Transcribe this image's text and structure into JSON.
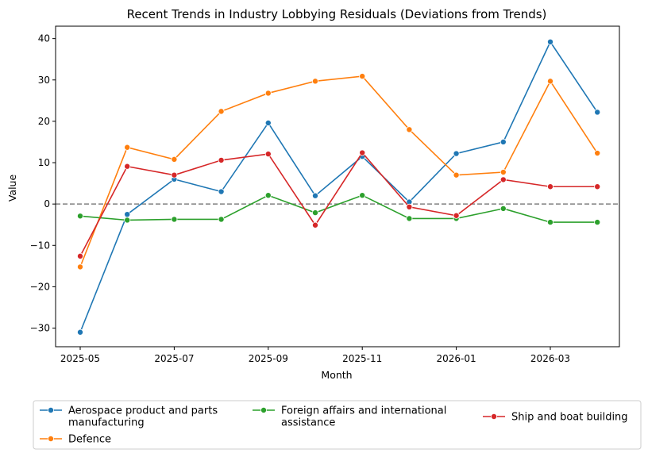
{
  "chart_data": {
    "type": "line",
    "title": "Recent Trends in Industry Lobbying Residuals (Deviations from Trends)",
    "xlabel": "Month",
    "ylabel": "Value",
    "x": [
      "2025-05",
      "2025-06",
      "2025-07",
      "2025-08",
      "2025-09",
      "2025-10",
      "2025-11",
      "2025-12",
      "2026-01",
      "2026-02",
      "2026-03",
      "2026-04"
    ],
    "x_ticks": [
      "2025-05",
      "2025-07",
      "2025-09",
      "2025-11",
      "2026-01",
      "2026-03"
    ],
    "y_ticks": [
      40,
      30,
      20,
      10,
      0,
      -10,
      -20,
      -30
    ],
    "ylim": [
      -34.5,
      43
    ],
    "reference_line": 0,
    "grid": false,
    "legend_position": "bottom",
    "series": [
      {
        "name": "Aerospace product and parts manufacturing",
        "name_lines": [
          "Aerospace product and parts",
          "manufacturing"
        ],
        "color": "#1f77b4",
        "values": [
          -31.0,
          -2.5,
          6.0,
          3.0,
          19.6,
          2.0,
          11.5,
          0.5,
          12.2,
          15.0,
          39.2,
          22.2
        ]
      },
      {
        "name": "Defence",
        "name_lines": [
          "Defence"
        ],
        "color": "#ff7f0e",
        "values": [
          -15.2,
          13.7,
          10.8,
          22.4,
          26.8,
          29.7,
          30.9,
          18.0,
          7.0,
          7.7,
          29.7,
          12.3
        ]
      },
      {
        "name": "Foreign affairs and international assistance",
        "name_lines": [
          "Foreign affairs and international",
          "assistance"
        ],
        "color": "#2ca02c",
        "values": [
          -2.9,
          -3.9,
          -3.7,
          -3.7,
          2.1,
          -2.1,
          2.1,
          -3.5,
          -3.5,
          -1.1,
          -4.4,
          -4.4
        ]
      },
      {
        "name": "Ship and boat building",
        "name_lines": [
          "Ship and boat building"
        ],
        "color": "#d62728",
        "values": [
          -12.6,
          9.1,
          7.0,
          10.6,
          12.1,
          -5.1,
          12.4,
          -0.7,
          -2.8,
          5.9,
          4.2,
          4.2
        ]
      }
    ]
  }
}
